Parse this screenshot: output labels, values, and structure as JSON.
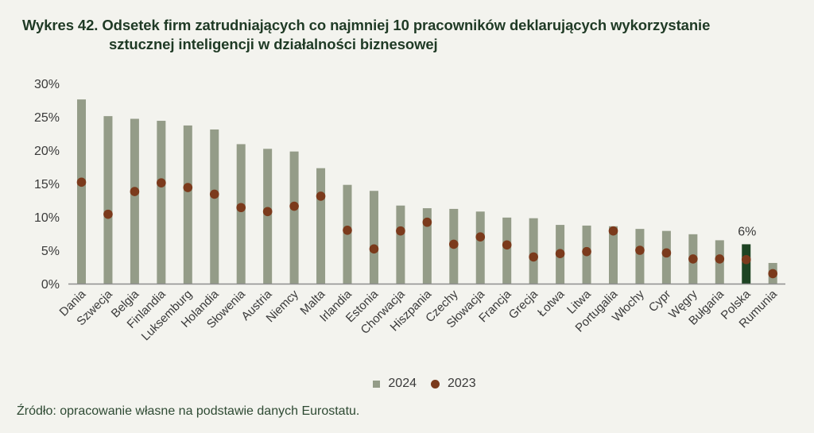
{
  "title": {
    "line1": "Wykres 42. Odsetek firm zatrudniających co najmniej 10 pracowników deklarujących wykorzystanie",
    "line2": "sztucznej inteligencji w działalności biznesowej"
  },
  "source": "Źródło: opracowanie własne na podstawie danych Eurostatu.",
  "colors": {
    "bar_2024": "#949c88",
    "bar_highlight": "#1e4423",
    "dot_2023": "#7b3a1c",
    "axis": "#8e8e8e",
    "title": "#1f3a25"
  },
  "chart_data": {
    "type": "bar",
    "title": "Wykres 42. Odsetek firm zatrudniających co najmniej 10 pracowników deklarujących wykorzystanie sztucznej inteligencji w działalności biznesowej",
    "xlabel": "",
    "ylabel": "",
    "ylim": [
      0,
      30
    ],
    "yticks": [
      0,
      5,
      10,
      15,
      20,
      25,
      30
    ],
    "ytick_labels": [
      "0%",
      "5%",
      "10%",
      "15%",
      "20%",
      "25%",
      "30%"
    ],
    "grid": false,
    "legend_position": "bottom",
    "categories": [
      "Dania",
      "Szwecja",
      "Belgia",
      "Finlandia",
      "Luksemburg",
      "Holandia",
      "Słowenia",
      "Austria",
      "Niemcy",
      "Malta",
      "Irlandia",
      "Estonia",
      "Chorwacja",
      "Hiszpania",
      "Czechy",
      "Słowacja",
      "Francja",
      "Grecja",
      "Łotwa",
      "Litwa",
      "Portugalia",
      "Włochy",
      "Cypr",
      "Węgry",
      "Bułgaria",
      "Polska",
      "Rumunia"
    ],
    "series": [
      {
        "name": "2024",
        "type": "bar",
        "values": [
          27.6,
          25.1,
          24.7,
          24.4,
          23.7,
          23.1,
          20.9,
          20.2,
          19.8,
          17.3,
          14.8,
          13.9,
          11.7,
          11.3,
          11.2,
          10.8,
          9.9,
          9.8,
          8.8,
          8.7,
          8.6,
          8.2,
          7.9,
          7.4,
          6.5,
          5.9,
          3.1
        ]
      },
      {
        "name": "2023",
        "type": "scatter",
        "values": [
          15.2,
          10.4,
          13.8,
          15.1,
          14.4,
          13.4,
          11.4,
          10.8,
          11.6,
          13.1,
          8.0,
          5.2,
          7.9,
          9.2,
          5.9,
          7.0,
          5.8,
          4.0,
          4.5,
          4.8,
          7.9,
          5.0,
          4.6,
          3.7,
          3.7,
          3.6,
          1.5
        ]
      }
    ],
    "highlight": {
      "category": "Polska",
      "label": "6%"
    }
  }
}
